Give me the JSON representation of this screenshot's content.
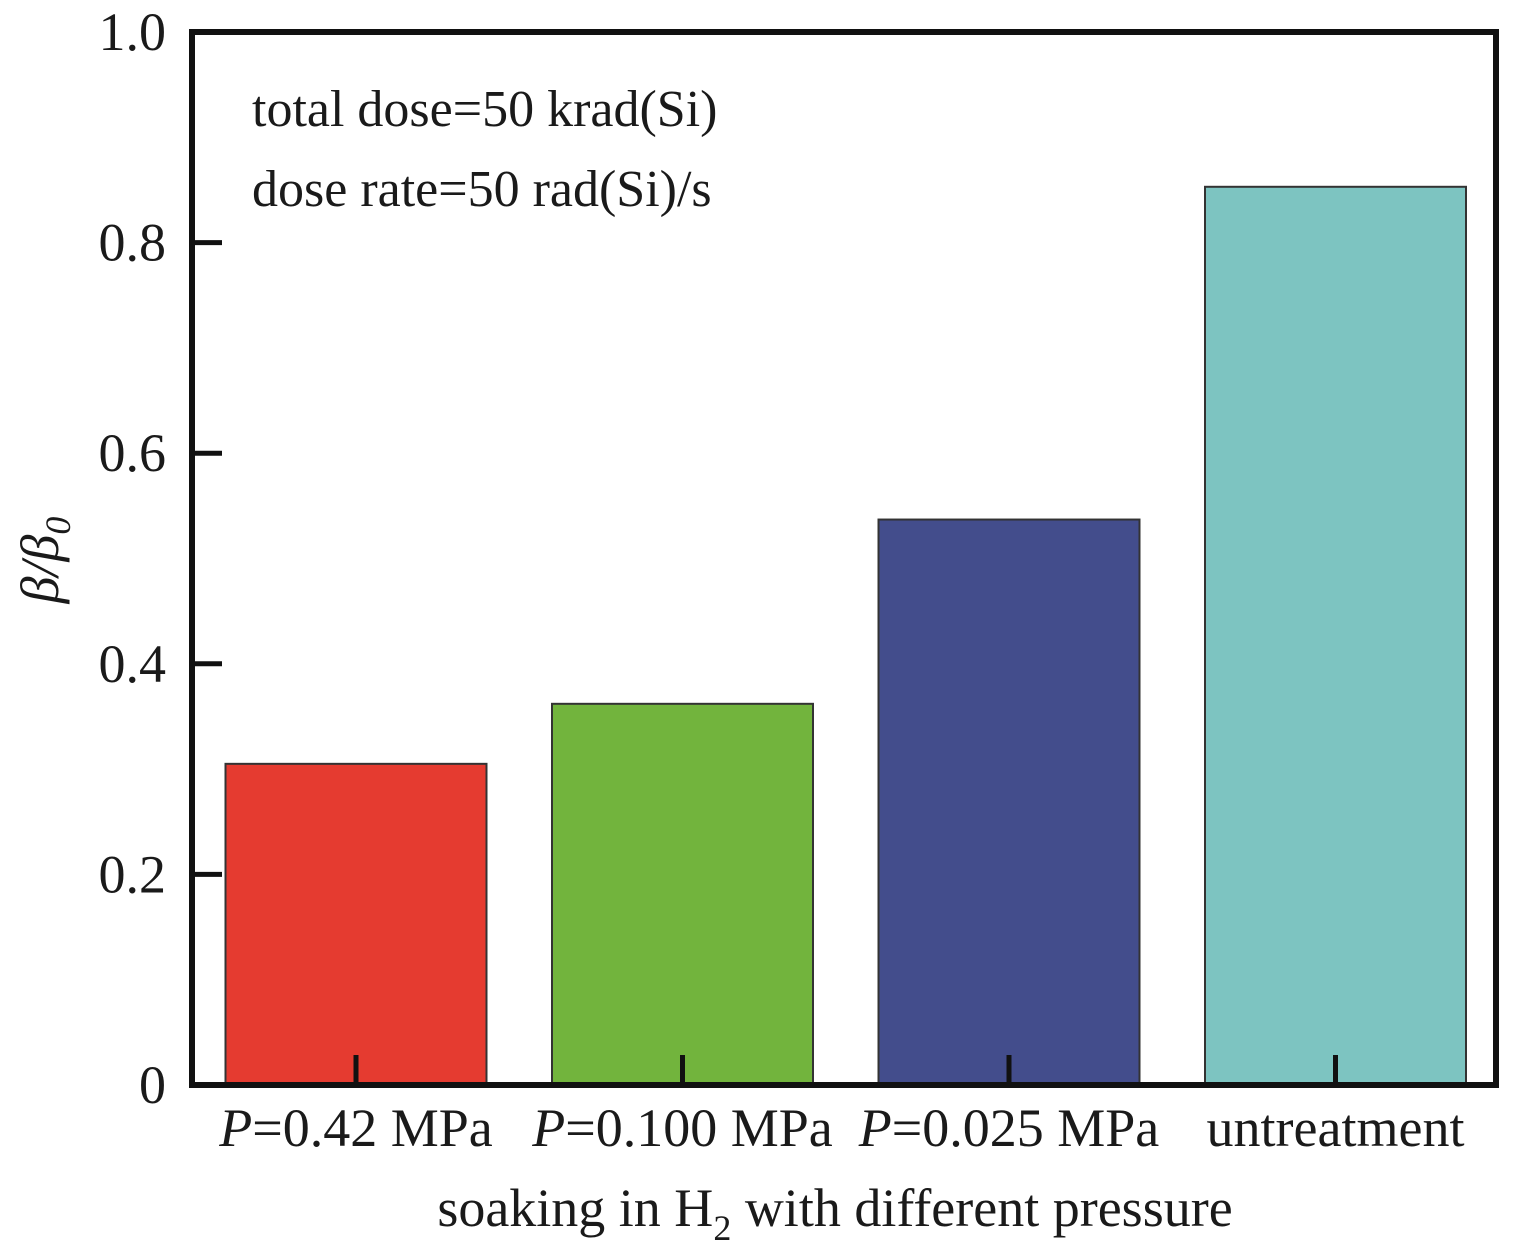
{
  "chart_data": {
    "type": "bar",
    "categories": [
      {
        "prefix": "P",
        "text": "=0.42 MPa"
      },
      {
        "prefix": "P",
        "text": "=0.100 MPa"
      },
      {
        "prefix": "P",
        "text": "=0.025 MPa"
      },
      {
        "prefix": "",
        "text": "untreatment"
      }
    ],
    "values": [
      0.305,
      0.362,
      0.537,
      0.853
    ],
    "colors": [
      "#e53b30",
      "#72b43d",
      "#434d8c",
      "#7dc4c1"
    ],
    "ylim": [
      0,
      1.0
    ],
    "yticks": [
      "0",
      "0.2",
      "0.4",
      "0.6",
      "0.8",
      "1.0"
    ],
    "ytick_values": [
      0,
      0.2,
      0.4,
      0.6,
      0.8,
      1.0
    ],
    "ylabel": {
      "main": "β/β",
      "sub": "0"
    },
    "xlabel": {
      "before": "soaking in H",
      "sub": "2",
      "after": " with different pressure"
    },
    "annotations": [
      "total dose=50 krad(Si)",
      "dose rate=50 rad(Si)/s"
    ],
    "grid": false,
    "legend": "none"
  }
}
